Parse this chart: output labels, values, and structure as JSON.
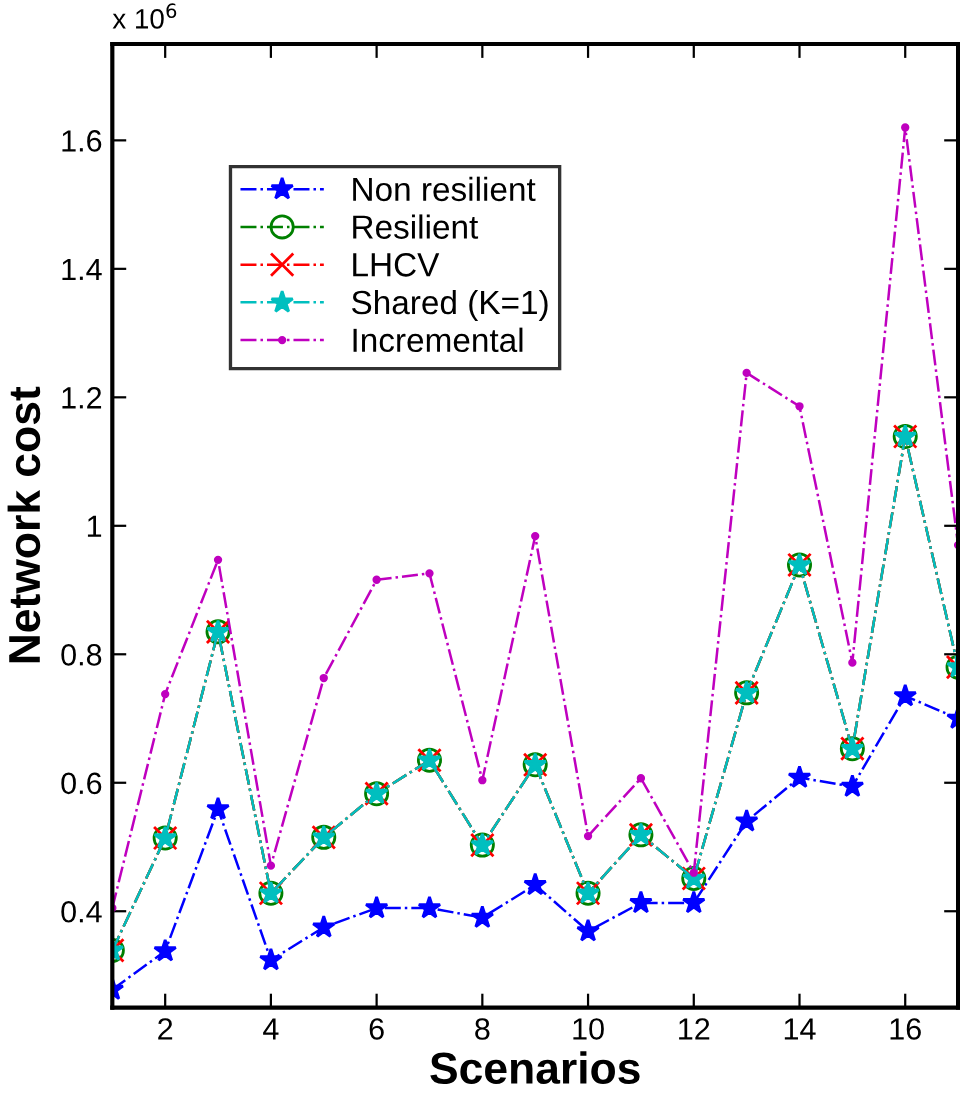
{
  "chart_data": {
    "type": "line",
    "xlabel": "Scenarios",
    "ylabel": "Network cost",
    "annotations": [
      "x 10$^{6}$"
    ],
    "x": [
      1,
      2,
      3,
      4,
      5,
      6,
      7,
      8,
      9,
      10,
      11,
      12,
      13,
      14,
      15,
      16,
      17
    ],
    "xlim": [
      1,
      17
    ],
    "xticks": [
      2,
      4,
      6,
      8,
      10,
      12,
      14,
      16
    ],
    "ylim": [
      0.25,
      1.75
    ],
    "yticks": [
      0.4,
      0.6,
      0.8,
      1,
      1.2,
      1.4,
      1.6
    ],
    "legend": "top left",
    "line_style": "dashdot",
    "series": [
      {
        "name": "Non resilient",
        "color": "#0000ff",
        "marker": "star",
        "values": [
          0.278,
          0.338,
          0.559,
          0.324,
          0.375,
          0.405,
          0.405,
          0.39,
          0.441,
          0.369,
          0.413,
          0.413,
          0.54,
          0.608,
          0.594,
          0.735,
          0.7
        ]
      },
      {
        "name": "Resilient",
        "color": "#008000",
        "marker": "circle",
        "values": [
          0.339,
          0.514,
          0.835,
          0.428,
          0.515,
          0.583,
          0.635,
          0.503,
          0.628,
          0.428,
          0.519,
          0.451,
          0.74,
          0.939,
          0.653,
          1.139,
          0.78
        ]
      },
      {
        "name": "LHCV",
        "color": "#ff0000",
        "marker": "cross",
        "values": [
          0.339,
          0.514,
          0.835,
          0.428,
          0.515,
          0.583,
          0.635,
          0.503,
          0.628,
          0.428,
          0.519,
          0.451,
          0.74,
          0.939,
          0.653,
          1.139,
          0.78
        ]
      },
      {
        "name": "Shared (K=1)",
        "color": "#00bfbf",
        "marker": "star",
        "values": [
          0.339,
          0.514,
          0.835,
          0.428,
          0.515,
          0.583,
          0.635,
          0.503,
          0.628,
          0.428,
          0.519,
          0.451,
          0.74,
          0.939,
          0.653,
          1.139,
          0.78
        ]
      },
      {
        "name": "Incremental",
        "color": "#bf00bf",
        "marker": "point",
        "values": [
          0.405,
          0.738,
          0.947,
          0.471,
          0.763,
          0.916,
          0.926,
          0.604,
          0.984,
          0.517,
          0.607,
          0.46,
          1.238,
          1.186,
          0.787,
          1.62,
          0.97
        ]
      }
    ]
  }
}
